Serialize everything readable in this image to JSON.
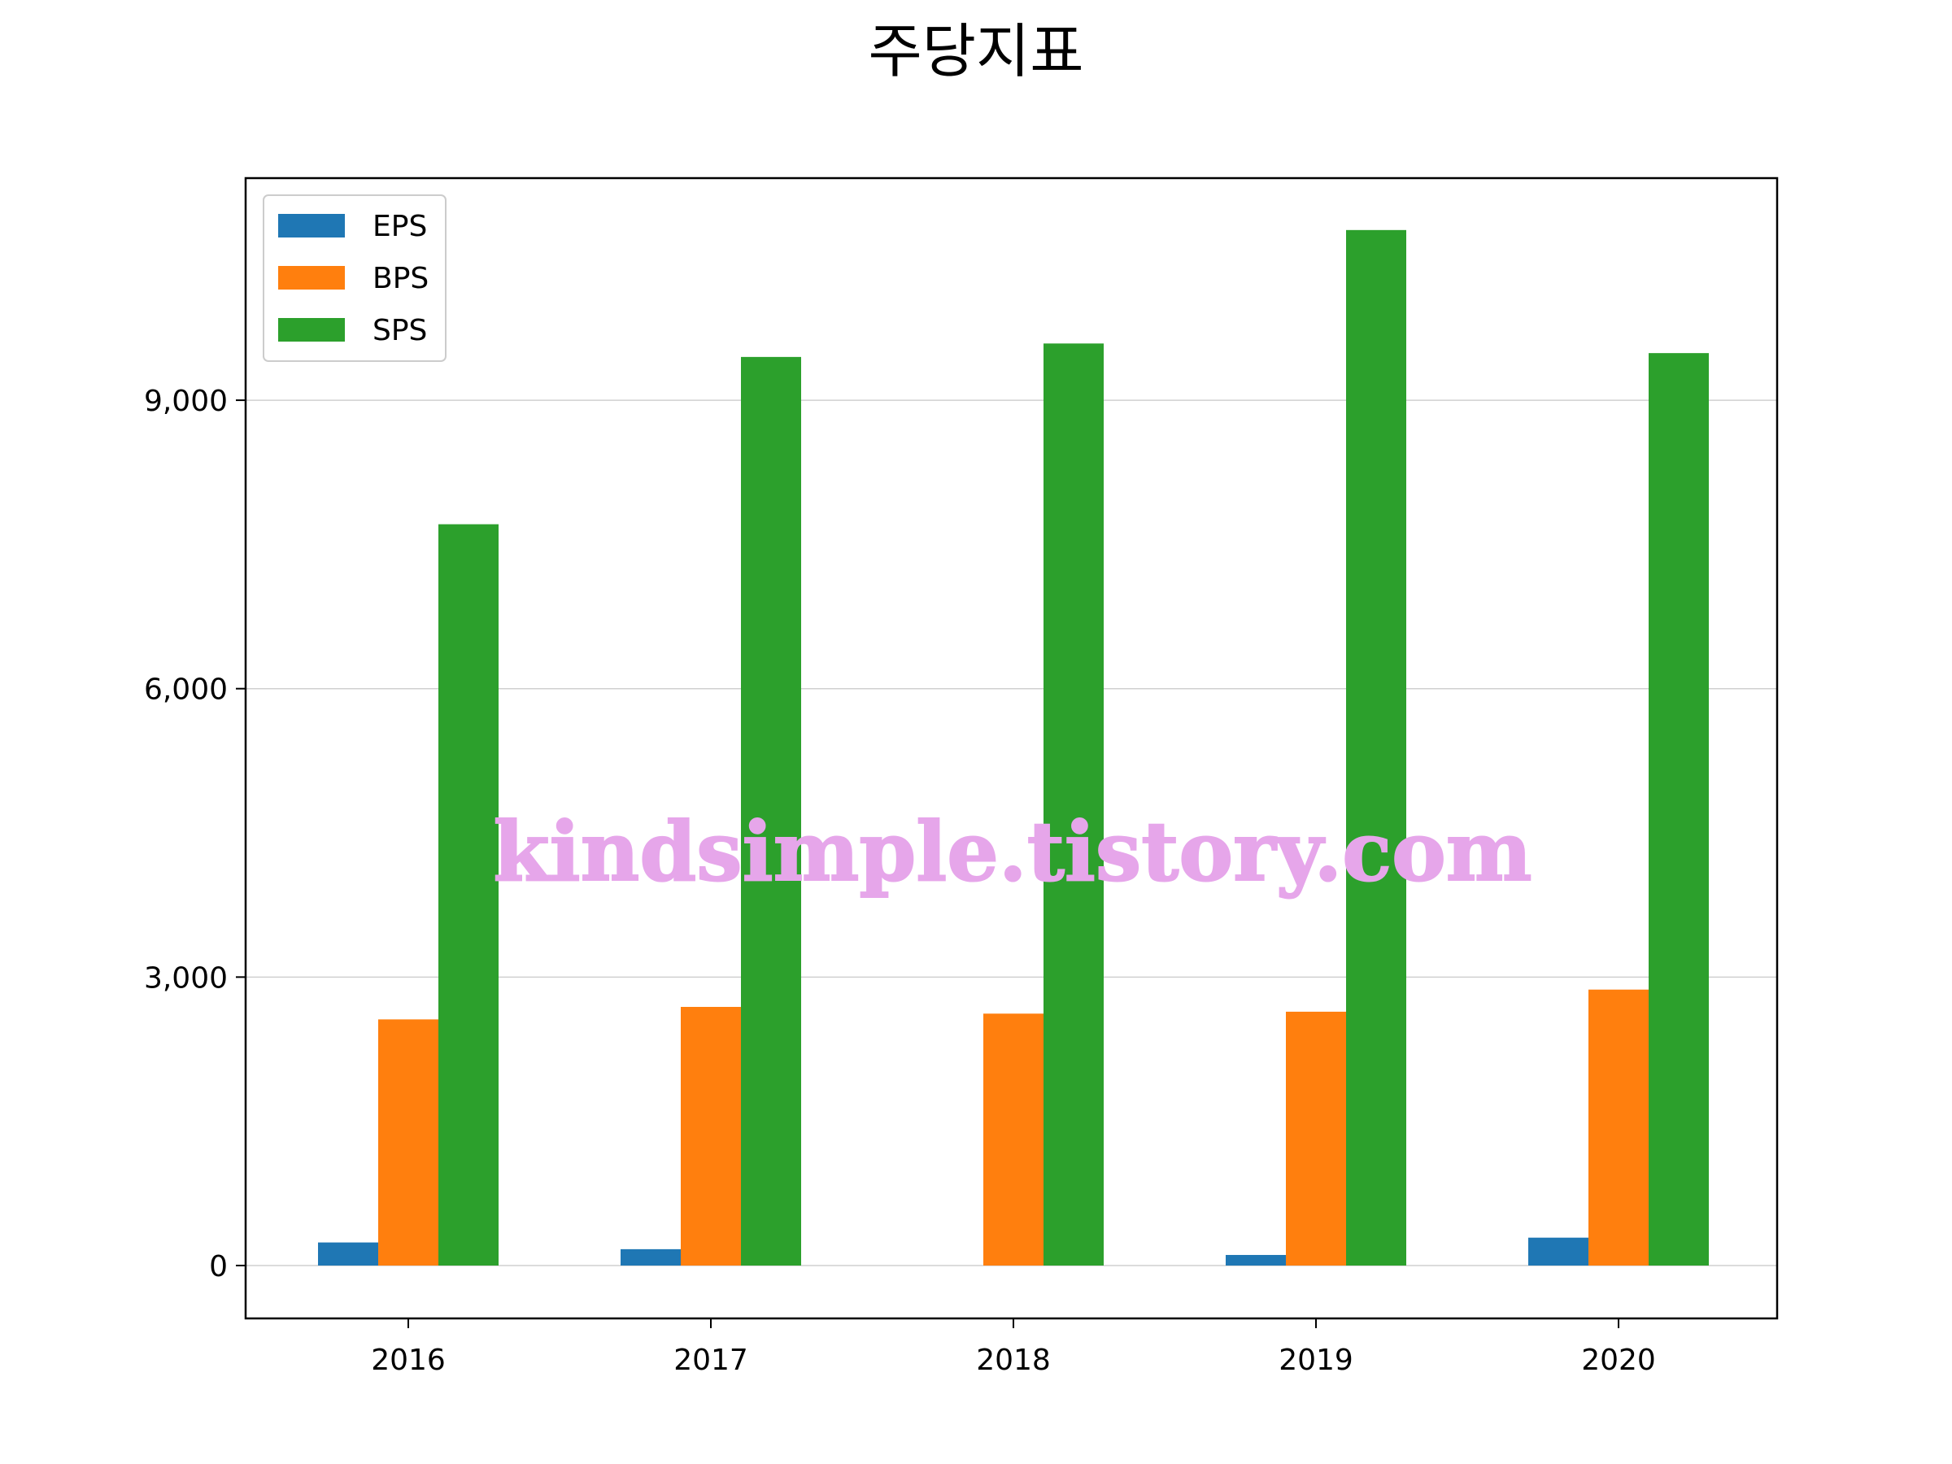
{
  "chart_data": {
    "type": "bar",
    "title": "주당지표",
    "xlabel": "",
    "ylabel": "",
    "categories": [
      "2016",
      "2017",
      "2018",
      "2019",
      "2020"
    ],
    "series": [
      {
        "name": "EPS",
        "color": "#1f77b4",
        "values": [
          240,
          170,
          0,
          110,
          290
        ]
      },
      {
        "name": "BPS",
        "color": "#ff7f0e",
        "values": [
          2560,
          2690,
          2620,
          2640,
          2870
        ]
      },
      {
        "name": "SPS",
        "color": "#2ca02c",
        "values": [
          7710,
          9450,
          9590,
          10770,
          9490
        ]
      }
    ],
    "ylim": [
      -550,
      11310
    ],
    "yticks": [
      0,
      3000,
      6000,
      9000
    ],
    "ytick_labels": [
      "0",
      "3,000",
      "6,000",
      "9,000"
    ],
    "grid": "y",
    "legend_position": "top-left",
    "watermark": "kindsimple.tistory.com"
  }
}
